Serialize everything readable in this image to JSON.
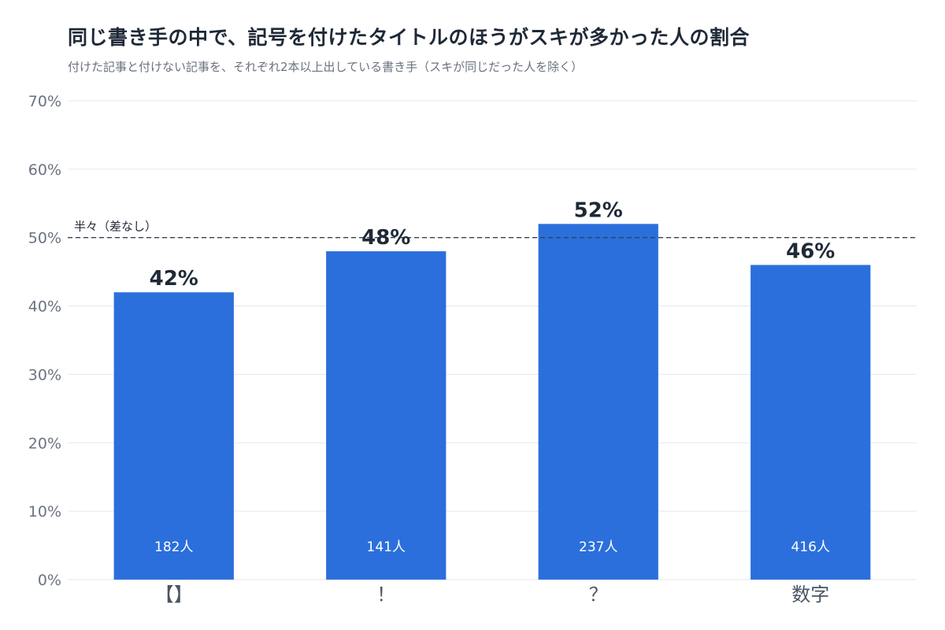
{
  "chart_data": {
    "type": "bar",
    "title": "同じ書き手の中で、記号を付けたタイトルのほうがスキが多かった人の割合",
    "subtitle": "付けた記事と付けない記事を、それぞれ2本以上出している書き手（スキが同じだった人を除く）",
    "categories": [
      "【】",
      "！",
      "？",
      "数字"
    ],
    "values": [
      42,
      48,
      52,
      46
    ],
    "value_labels": [
      "42%",
      "48%",
      "52%",
      "46%"
    ],
    "counts": [
      "182人",
      "141人",
      "237人",
      "416人"
    ],
    "ylim": [
      0,
      70
    ],
    "yticks": [
      0,
      10,
      20,
      30,
      40,
      50,
      60,
      70
    ],
    "ytick_labels": [
      "0%",
      "10%",
      "20%",
      "30%",
      "40%",
      "50%",
      "60%",
      "70%"
    ],
    "reference_line": {
      "value": 50,
      "label": "半々（差なし）",
      "style": "dashed"
    },
    "grid": true,
    "bar_color": "#2b6fdc"
  }
}
